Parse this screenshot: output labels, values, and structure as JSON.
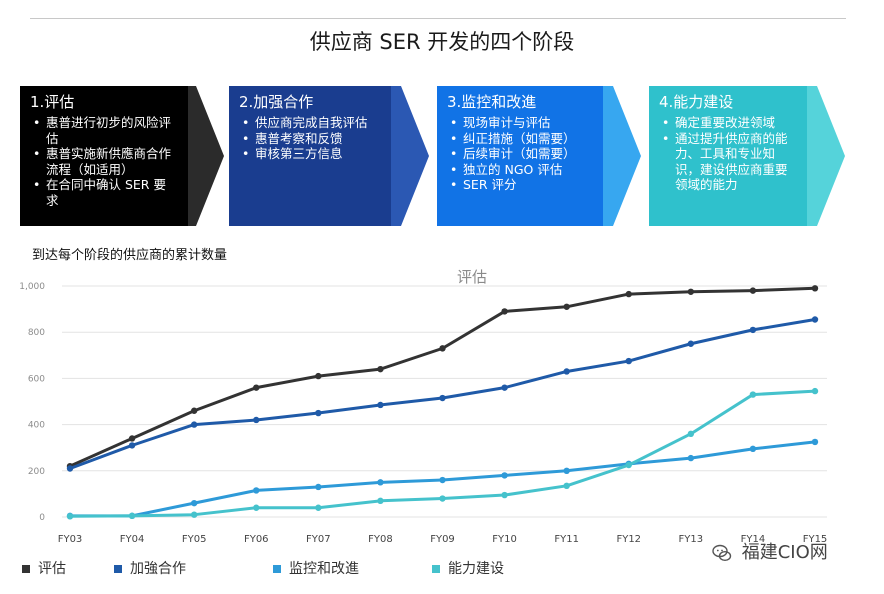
{
  "title": "供应商 SER 开发的四个阶段",
  "stages": [
    {
      "heading": "1.评估",
      "items": [
        "惠普进行初步的风险评估",
        "惠普实施新供應商合作流程（如适用）",
        "在合同中确认 SER 要求"
      ]
    },
    {
      "heading": "2.加强合作",
      "items": [
        "供应商完成自我评估",
        "惠普考察和反馈",
        "审核第三方信息"
      ]
    },
    {
      "heading": "3.监控和改進",
      "items": [
        "现场审计与评估",
        "纠正措施（如需要）",
        "后续审计（如需要）",
        "独立的 NGO 评估",
        "SER 评分"
      ]
    },
    {
      "heading": "4.能力建设",
      "items": [
        "确定重要改进领域",
        "通过提升供应商的能力、工具和专业知识，建设供应商重要领域的能力"
      ]
    }
  ],
  "chart_caption": "到达每个阶段的供应商的累计数量",
  "watermark": "福建CIO网",
  "colors": {
    "series1": "#333333",
    "series2": "#1f5aa8",
    "series3": "#2e9ad8",
    "series4": "#45c2cc",
    "grid": "#e3e3e3"
  },
  "chart_data": {
    "type": "line",
    "title": "评估",
    "x": [
      "FY03",
      "FY04",
      "FY05",
      "FY06",
      "FY07",
      "FY08",
      "FY09",
      "FY10",
      "FY11",
      "FY12",
      "FY13",
      "FY14",
      "FY15"
    ],
    "ylim": [
      0,
      1000
    ],
    "yticks": [
      "0",
      "200",
      "400",
      "600",
      "800",
      "1,000"
    ],
    "grid": "horizontal",
    "legend": "bottom-left",
    "series": [
      {
        "name": "评估",
        "values": [
          220,
          340,
          460,
          560,
          610,
          640,
          730,
          890,
          910,
          965,
          975,
          980,
          990
        ]
      },
      {
        "name": "加強合作",
        "values": [
          210,
          310,
          400,
          420,
          450,
          485,
          515,
          560,
          630,
          675,
          750,
          810,
          855
        ]
      },
      {
        "name": "监控和改進",
        "values": [
          5,
          5,
          60,
          115,
          130,
          150,
          160,
          180,
          200,
          230,
          255,
          295,
          325
        ]
      },
      {
        "name": "能力建设",
        "values": [
          3,
          5,
          10,
          40,
          40,
          70,
          80,
          95,
          135,
          225,
          360,
          530,
          545
        ]
      }
    ]
  }
}
